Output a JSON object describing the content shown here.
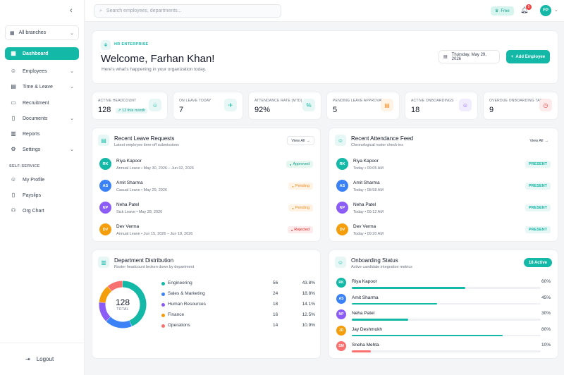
{
  "sidebar": {
    "branch_label": "All branches",
    "nav": [
      {
        "label": "Dashboard",
        "icon": "dashboard-icon",
        "glyph": "▦",
        "active": true,
        "has_chevron": false
      },
      {
        "label": "Employees",
        "icon": "users-icon",
        "glyph": "☺",
        "active": false,
        "has_chevron": true
      },
      {
        "label": "Time & Leave",
        "icon": "calendar-icon",
        "glyph": "▤",
        "active": false,
        "has_chevron": true
      },
      {
        "label": "Recruitment",
        "icon": "briefcase-icon",
        "glyph": "▭",
        "active": false,
        "has_chevron": false
      },
      {
        "label": "Documents",
        "icon": "document-icon",
        "glyph": "▯",
        "active": false,
        "has_chevron": true
      },
      {
        "label": "Reports",
        "icon": "bar-chart-icon",
        "glyph": "▥",
        "active": false,
        "has_chevron": false
      },
      {
        "label": "Settings",
        "icon": "gear-icon",
        "glyph": "⚙",
        "active": false,
        "has_chevron": true
      }
    ],
    "self_service_label": "SELF-SERVICE",
    "self_service": [
      {
        "label": "My Profile",
        "icon": "user-icon",
        "glyph": "☺"
      },
      {
        "label": "Payslips",
        "icon": "receipt-icon",
        "glyph": "▯"
      },
      {
        "label": "Org Chart",
        "icon": "org-chart-icon",
        "glyph": "⚇"
      }
    ],
    "logout_label": "Logout"
  },
  "topbar": {
    "search_placeholder": "Search employees, departments...",
    "plan_label": "Free",
    "notification_count": "5",
    "user_initials": "FP"
  },
  "welcome": {
    "eyebrow": "HR ENTERPRISE",
    "title": "Welcome, Farhan Khan!",
    "subtitle": "Here's what's happening in your organization today.",
    "date": "Thursday, May 29, 2026",
    "add_button": "Add Employee"
  },
  "stats": [
    {
      "label": "ACTIVE HEADCOUNT",
      "value": "128",
      "trend": "↗ 12 this month",
      "icon": "users-icon",
      "glyph": "☺",
      "color": "#14b8a6",
      "bg": "#e6f7f5"
    },
    {
      "label": "ON LEAVE TODAY",
      "value": "7",
      "trend": "",
      "icon": "plane-icon",
      "glyph": "✈",
      "color": "#14b8a6",
      "bg": "#e6f7f5"
    },
    {
      "label": "ATTENDANCE RATE (MTD)",
      "value": "92%",
      "trend": "",
      "icon": "percent-icon",
      "glyph": "%",
      "color": "#14b8a6",
      "bg": "#e6f7f5"
    },
    {
      "label": "PENDING LEAVE APPROVALS",
      "value": "5",
      "trend": "",
      "icon": "clipboard-icon",
      "glyph": "▤",
      "color": "#ea8b1a",
      "bg": "#fff3e6"
    },
    {
      "label": "ACTIVE ONBOARDINGS",
      "value": "18",
      "trend": "",
      "icon": "user-plus-icon",
      "glyph": "☺",
      "color": "#8b5cf6",
      "bg": "#f1ecfe"
    },
    {
      "label": "OVERDUE ONBOARDING TASKS",
      "value": "9",
      "trend": "",
      "icon": "clock-icon",
      "glyph": "◷",
      "color": "#ef4444",
      "bg": "#fdeaea"
    }
  ],
  "leave": {
    "title": "Recent Leave Requests",
    "subtitle": "Latest employee time-off submissions",
    "view_all": "View All",
    "items": [
      {
        "initials": "RK",
        "name": "Riya Kapoor",
        "meta": "Annual Leave  •  May 30, 2026 – Jun 02, 2026",
        "status": "Approved",
        "avatar_color": "#14b8a6",
        "badge": "b-green"
      },
      {
        "initials": "AS",
        "name": "Amit Sharma",
        "meta": "Casual Leave  •  May 29, 2026",
        "status": "Pending",
        "avatar_color": "#3b82f6",
        "badge": "b-orange"
      },
      {
        "initials": "NP",
        "name": "Neha Patel",
        "meta": "Sick Leave  •  May 28, 2026",
        "status": "Pending",
        "avatar_color": "#8b5cf6",
        "badge": "b-orange"
      },
      {
        "initials": "DV",
        "name": "Dev Verma",
        "meta": "Annual Leave  •  Jun 15, 2026 – Jun 18, 2026",
        "status": "Rejected",
        "avatar_color": "#f59e0b",
        "badge": "b-red"
      }
    ]
  },
  "attendance": {
    "title": "Recent Attendance Feed",
    "subtitle": "Chronological roster check-ins",
    "view_all": "View All",
    "items": [
      {
        "initials": "RK",
        "name": "Riya Kapoor",
        "meta": "Today  •  09:05 AM",
        "status": "PRESENT",
        "avatar_color": "#14b8a6"
      },
      {
        "initials": "AS",
        "name": "Amit Sharma",
        "meta": "Today  •  08:58 AM",
        "status": "PRESENT",
        "avatar_color": "#3b82f6"
      },
      {
        "initials": "NP",
        "name": "Neha Patel",
        "meta": "Today  •  09:12 AM",
        "status": "PRESENT",
        "avatar_color": "#8b5cf6"
      },
      {
        "initials": "DV",
        "name": "Dev Verma",
        "meta": "Today  •  09:20 AM",
        "status": "PRESENT",
        "avatar_color": "#f59e0b"
      }
    ]
  },
  "departments": {
    "title": "Department Distribution",
    "subtitle": "Roster headcount broken down by department",
    "total": "128",
    "total_label": "TOTAL",
    "items": [
      {
        "name": "Engineering",
        "count": "56",
        "percent": "43.8%",
        "share": 43.8,
        "color": "#14b8a6"
      },
      {
        "name": "Sales & Marketing",
        "count": "24",
        "percent": "18.8%",
        "share": 18.8,
        "color": "#3b82f6"
      },
      {
        "name": "Human Resources",
        "count": "18",
        "percent": "14.1%",
        "share": 14.1,
        "color": "#8b5cf6"
      },
      {
        "name": "Finance",
        "count": "16",
        "percent": "12.5%",
        "share": 12.5,
        "color": "#f59e0b"
      },
      {
        "name": "Operations",
        "count": "14",
        "percent": "10.9%",
        "share": 10.9,
        "color": "#f87171"
      }
    ]
  },
  "onboarding": {
    "title": "Onboarding Status",
    "subtitle": "Active candidate integration metrics",
    "active_label": "18 Active",
    "items": [
      {
        "initials": "RK",
        "name": "Riya Kapoor",
        "percent": "60%",
        "progress": 0.6,
        "avatar_color": "#14b8a6",
        "bar_color": "#14b8a6"
      },
      {
        "initials": "AS",
        "name": "Amit Sharma",
        "percent": "45%",
        "progress": 0.45,
        "avatar_color": "#3b82f6",
        "bar_color": "#14b8a6"
      },
      {
        "initials": "NP",
        "name": "Neha Patel",
        "percent": "30%",
        "progress": 0.3,
        "avatar_color": "#8b5cf6",
        "bar_color": "#14b8a6"
      },
      {
        "initials": "JD",
        "name": "Jay Deshmukh",
        "percent": "80%",
        "progress": 0.8,
        "avatar_color": "#f59e0b",
        "bar_color": "#14b8a6"
      },
      {
        "initials": "SM",
        "name": "Sneha Mehta",
        "percent": "10%",
        "progress": 0.1,
        "avatar_color": "#f87171",
        "bar_color": "#f87171"
      }
    ]
  }
}
